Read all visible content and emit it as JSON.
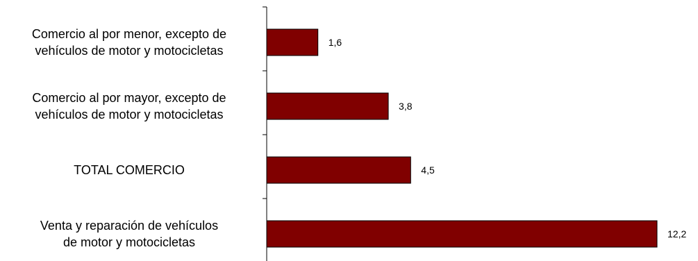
{
  "chart_data": {
    "type": "bar",
    "orientation": "horizontal",
    "categories": [
      [
        "Comercio al por menor, excepto de",
        "vehículos de motor y motocicletas"
      ],
      [
        "Comercio al por mayor, excepto de",
        "vehículos de motor y motocicletas"
      ],
      [
        "TOTAL COMERCIO"
      ],
      [
        "Venta y reparación de vehículos",
        "de motor y motocicletas"
      ]
    ],
    "values": [
      1.6,
      3.8,
      4.5,
      12.2
    ],
    "value_labels": [
      "1,6",
      "3,8",
      "4,5",
      "12,2"
    ],
    "xlim": [
      0,
      12.2
    ],
    "title": "",
    "xlabel": "",
    "ylabel": "",
    "grid": false,
    "legend": "none",
    "bar_color": "#800000",
    "bar_outline": "#000000"
  }
}
